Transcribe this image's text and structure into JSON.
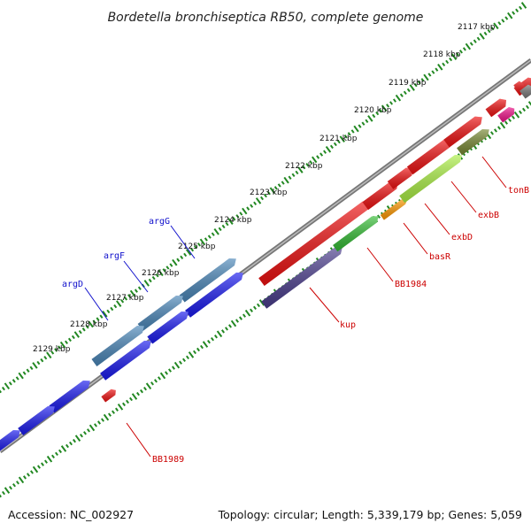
{
  "title": "Bordetella bronchiseptica RB50, complete genome",
  "footer": {
    "accession": "Accession: NC_002927",
    "summary": "Topology: circular; Length: 5,339,179 bp; Genes: 5,059"
  },
  "colors": {
    "blue": "#1a1aee",
    "steel": "#4a86b8",
    "red": "#ee1111",
    "indigo": "#4a3d8c",
    "green": "#33bb33",
    "lime": "#aaee44",
    "olive": "#778833",
    "orange": "#ff9900",
    "magenta": "#ee1188",
    "gray": "#777777",
    "tick": "#228822",
    "leader_red": "#cc0000",
    "leader_blue": "#1010cc"
  },
  "kbp_ticks": [
    {
      "label": "2117 kbp"
    },
    {
      "label": "2118 kbp"
    },
    {
      "label": "2119 kbp"
    },
    {
      "label": "2120 kbp"
    },
    {
      "label": "2121 kbp"
    },
    {
      "label": "2122 kbp"
    },
    {
      "label": "2123 kbp"
    },
    {
      "label": "2124 kbp"
    },
    {
      "label": "2125 kbp"
    },
    {
      "label": "2126 kbp"
    },
    {
      "label": "2127 kbp"
    },
    {
      "label": "2128 kbp"
    },
    {
      "label": "2129 kbp"
    }
  ],
  "gene_labels": [
    {
      "label": "argG",
      "color": "blue"
    },
    {
      "label": "argF",
      "color": "blue"
    },
    {
      "label": "argD",
      "color": "blue"
    },
    {
      "label": "tonB",
      "color": "red"
    },
    {
      "label": "exbB",
      "color": "red"
    },
    {
      "label": "exbD",
      "color": "red"
    },
    {
      "label": "basR",
      "color": "red"
    },
    {
      "label": "BB1984",
      "color": "red"
    },
    {
      "label": "kup",
      "color": "red"
    },
    {
      "label": "BB1989",
      "color": "red"
    }
  ],
  "features": [
    {
      "name": "gene-blue-1",
      "color": "blue"
    },
    {
      "name": "gene-blue-2",
      "color": "blue"
    },
    {
      "name": "gene-blue-3",
      "color": "blue"
    },
    {
      "name": "gene-blue-4",
      "color": "blue"
    },
    {
      "name": "gene-blue-5",
      "color": "blue"
    },
    {
      "name": "gene-blue-6",
      "color": "blue"
    },
    {
      "name": "gene-steel-argG",
      "color": "steel"
    },
    {
      "name": "gene-steel-argF",
      "color": "steel"
    },
    {
      "name": "gene-steel-argD",
      "color": "steel"
    },
    {
      "name": "gene-red-1",
      "color": "red"
    },
    {
      "name": "gene-red-2",
      "color": "red"
    },
    {
      "name": "gene-red-3",
      "color": "red"
    },
    {
      "name": "gene-red-4",
      "color": "red"
    },
    {
      "name": "gene-red-5",
      "color": "red"
    },
    {
      "name": "gene-red-6",
      "color": "red"
    },
    {
      "name": "gene-red-7",
      "color": "red"
    },
    {
      "name": "gene-red-small",
      "color": "red"
    },
    {
      "name": "gene-red-bb1989",
      "color": "red"
    },
    {
      "name": "gene-kup",
      "color": "indigo"
    },
    {
      "name": "gene-bb1984",
      "color": "green"
    },
    {
      "name": "gene-basr",
      "color": "orange"
    },
    {
      "name": "gene-exbd",
      "color": "lime"
    },
    {
      "name": "gene-exbb",
      "color": "olive"
    },
    {
      "name": "gene-tonb",
      "color": "magenta"
    },
    {
      "name": "gene-gray",
      "color": "gray"
    }
  ]
}
